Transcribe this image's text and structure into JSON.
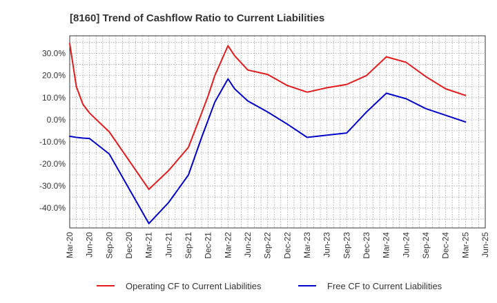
{
  "chart_data": {
    "type": "line",
    "title": "[8160]  Trend of Cashflow Ratio to Current Liabilities",
    "xlabel": "",
    "ylabel": "",
    "x_ticks": [
      "Mar-20",
      "Jun-20",
      "Sep-20",
      "Dec-20",
      "Mar-21",
      "Jun-21",
      "Sep-21",
      "Dec-21",
      "Mar-22",
      "Jun-22",
      "Sep-22",
      "Dec-22",
      "Mar-23",
      "Jun-23",
      "Sep-23",
      "Dec-23",
      "Mar-24",
      "Jun-24",
      "Sep-24",
      "Dec-24",
      "Mar-25",
      "Jun-25"
    ],
    "y_ticks": [
      -40,
      -30,
      -20,
      -10,
      0,
      10,
      20,
      30
    ],
    "y_tick_labels": [
      "-40.0%",
      "-30.0%",
      "-20.0%",
      "-10.0%",
      "0.0%",
      "10.0%",
      "20.0%",
      "30.0%"
    ],
    "ylim": [
      -49,
      38
    ],
    "grid": true,
    "legend_position": "bottom",
    "series": [
      {
        "name": "Operating CF to Current Liabilities",
        "color": "#e31a1c",
        "points": [
          [
            "Mar-20",
            34.5
          ],
          [
            "Apr-20",
            15.0
          ],
          [
            "May-20",
            7.0
          ],
          [
            "Jun-20",
            3.0
          ],
          [
            "Sep-20",
            -5.5
          ],
          [
            "Mar-21",
            -31.5
          ],
          [
            "Jun-21",
            -23.0
          ],
          [
            "Sep-21",
            -12.5
          ],
          [
            "Nov-21",
            3.0
          ],
          [
            "Dec-21",
            11.0
          ],
          [
            "Jan-22",
            20.0
          ],
          [
            "Mar-22",
            33.5
          ],
          [
            "Apr-22",
            29.0
          ],
          [
            "Jun-22",
            22.5
          ],
          [
            "Sep-22",
            20.5
          ],
          [
            "Dec-22",
            15.5
          ],
          [
            "Mar-23",
            12.5
          ],
          [
            "Jun-23",
            14.5
          ],
          [
            "Sep-23",
            16.0
          ],
          [
            "Dec-23",
            20.0
          ],
          [
            "Mar-24",
            28.5
          ],
          [
            "Jun-24",
            26.0
          ],
          [
            "Sep-24",
            19.5
          ],
          [
            "Dec-24",
            14.0
          ],
          [
            "Mar-25",
            11.0
          ]
        ]
      },
      {
        "name": "Free CF to Current Liabilities",
        "color": "#0000cc",
        "points": [
          [
            "Mar-20",
            -7.5
          ],
          [
            "Apr-20",
            -8.0
          ],
          [
            "May-20",
            -8.3
          ],
          [
            "Jun-20",
            -8.5
          ],
          [
            "Sep-20",
            -15.5
          ],
          [
            "Mar-21",
            -47.0
          ],
          [
            "Jun-21",
            -37.5
          ],
          [
            "Sep-21",
            -25.0
          ],
          [
            "Nov-21",
            -8.0
          ],
          [
            "Dec-21",
            0.0
          ],
          [
            "Jan-22",
            8.0
          ],
          [
            "Mar-22",
            18.5
          ],
          [
            "Apr-22",
            14.0
          ],
          [
            "Jun-22",
            8.5
          ],
          [
            "Sep-22",
            3.5
          ],
          [
            "Dec-22",
            -2.0
          ],
          [
            "Mar-23",
            -8.0
          ],
          [
            "Jun-23",
            -7.0
          ],
          [
            "Sep-23",
            -6.0
          ],
          [
            "Dec-23",
            3.5
          ],
          [
            "Mar-24",
            12.0
          ],
          [
            "Jun-24",
            9.5
          ],
          [
            "Sep-24",
            5.0
          ],
          [
            "Dec-24",
            2.0
          ],
          [
            "Mar-25",
            -1.0
          ]
        ]
      }
    ]
  }
}
